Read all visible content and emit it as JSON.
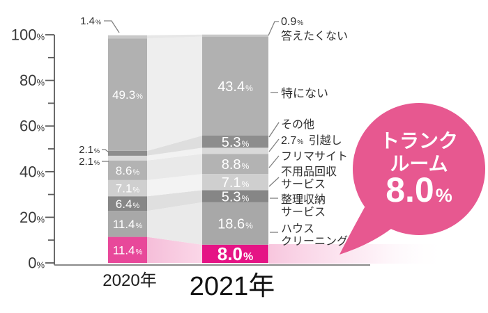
{
  "chart_data": {
    "type": "bar",
    "stacked": true,
    "unit": "%",
    "ylim": [
      0,
      100
    ],
    "yticks": [
      0,
      20,
      40,
      60,
      80,
      100
    ],
    "categories_bottom_to_top": [
      "トランクルーム",
      "ハウスクリーニング",
      "整理収納サービス",
      "不用品回収サービス",
      "フリマサイト",
      "引越し",
      "その他",
      "特にない",
      "答えたくない"
    ],
    "series": [
      {
        "name": "2020年",
        "values": [
          11.4,
          11.4,
          6.4,
          7.1,
          8.6,
          2.1,
          2.1,
          49.3,
          1.4
        ]
      },
      {
        "name": "2021年",
        "values": [
          8.0,
          18.6,
          5.3,
          7.1,
          8.8,
          2.7,
          5.3,
          43.4,
          0.9
        ]
      }
    ],
    "highlight": {
      "category": "トランクルーム",
      "year": "2021年",
      "value": "8.0"
    }
  },
  "percent_sign": "%",
  "annotations": {
    "left": [
      {
        "value": "1.4"
      },
      {
        "value": "2.1"
      },
      {
        "value": "2.1"
      }
    ],
    "right": [
      {
        "value": "0.9",
        "label": [
          "答えたくない"
        ]
      },
      {
        "label": [
          "特にない"
        ]
      },
      {
        "label": [
          "その他"
        ]
      },
      {
        "value": "2.7",
        "label": [
          "引越し"
        ]
      },
      {
        "label": [
          "フリマサイト"
        ]
      },
      {
        "label": [
          "不用品回収",
          "サービス"
        ]
      },
      {
        "label": [
          "整理収納",
          "サービス"
        ]
      },
      {
        "label": [
          "ハウス",
          "クリーニング"
        ]
      }
    ]
  },
  "callout": {
    "lines": [
      "トランク",
      "ルーム"
    ],
    "value": "8.0"
  },
  "colors": {
    "categories": {
      "トランクルーム": {
        "2020年": "#e8489a",
        "2021年": "#e51485"
      },
      "ハウスクリーニング": "#a8a8a8",
      "整理収納サービス": "#868686",
      "不用品回収サービス": "#cfcfcf",
      "フリマサイト": "#b3b3b3",
      "引越し": "#d9d9d9",
      "その他": "#8d8d8d",
      "特にない": "#b1b1b1",
      "答えたくない": "#c8c8c8"
    },
    "connectors": {
      "トランクルーム": [
        "#f5bed9",
        "#fbd7e8"
      ],
      "ハウスクリーニング": "#eaeaea",
      "整理収納サービス": "#dfdfdf",
      "不用品回収サービス": "#f3f3f3",
      "フリマサイト": "#e9e9e9",
      "引越し": "#f2f2f2",
      "その他": "#dedede",
      "特にない": "#eeeeee",
      "答えたくない": "#e7e7e7"
    },
    "bubble": "#e75890",
    "glow": "#f7c3dc",
    "axis": "#5a5a5a",
    "baseline": "#8a8a8a",
    "leader": "#808080",
    "bar_value_text": "#ffffff"
  }
}
